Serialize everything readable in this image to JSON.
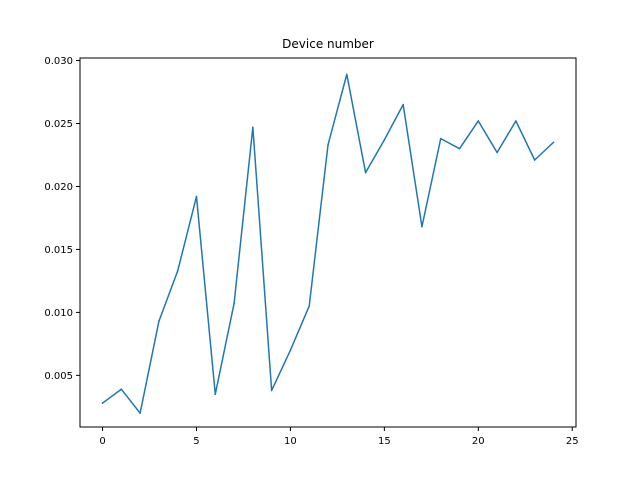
{
  "chart_data": {
    "type": "line",
    "title": "Device number",
    "xlabel": "",
    "ylabel": "",
    "xlim": [
      -1.2,
      25.2
    ],
    "ylim": [
      0.0009,
      0.0302
    ],
    "x_ticks": [
      0,
      5,
      10,
      15,
      20,
      25
    ],
    "x_tick_labels": [
      "0",
      "5",
      "10",
      "15",
      "20",
      "25"
    ],
    "y_ticks": [
      0.005,
      0.01,
      0.015,
      0.02,
      0.025,
      0.03
    ],
    "y_tick_labels": [
      "0.005",
      "0.010",
      "0.015",
      "0.020",
      "0.025",
      "0.030"
    ],
    "grid": false,
    "series": [
      {
        "color": "#1f77b4",
        "x": [
          0,
          1,
          2,
          3,
          4,
          5,
          6,
          7,
          8,
          9,
          10,
          11,
          12,
          13,
          14,
          15,
          16,
          17,
          18,
          19,
          20,
          21,
          22,
          23,
          24
        ],
        "values": [
          0.0028,
          0.0039,
          0.002,
          0.0093,
          0.0133,
          0.0192,
          0.0035,
          0.0107,
          0.0247,
          0.0038,
          0.007,
          0.0105,
          0.0233,
          0.0289,
          0.0211,
          0.0237,
          0.0265,
          0.0168,
          0.0238,
          0.023,
          0.0252,
          0.0227,
          0.0252,
          0.0221,
          0.0235
        ]
      }
    ]
  }
}
